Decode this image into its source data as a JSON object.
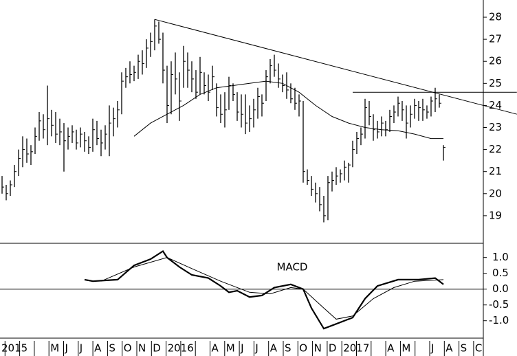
{
  "chart_data": [
    {
      "type": "ohlc",
      "color": "#000000",
      "high": [
        20.8,
        20.4,
        20.6,
        21.3,
        22.0,
        22.6,
        22.5,
        22.2,
        23.0,
        23.7,
        23.6,
        24.9,
        23.8,
        23.7,
        23.4,
        23.2,
        23.0,
        23.1,
        22.9,
        23.0,
        22.8,
        22.6,
        23.4,
        23.3,
        22.9,
        23.1,
        24.0,
        23.9,
        24.2,
        25.5,
        25.7,
        26.0,
        25.8,
        26.3,
        26.5,
        27.0,
        27.3,
        27.9,
        27.8,
        27.3,
        25.8,
        26.0,
        26.4,
        25.5,
        26.7,
        26.4,
        26.0,
        25.6,
        26.2,
        25.5,
        25.4,
        25.8,
        25.0,
        24.5,
        24.6,
        25.3,
        25.0,
        24.6,
        24.5,
        24.5,
        24.0,
        24.3,
        24.8,
        24.5,
        25.6,
        26.1,
        26.3,
        25.9,
        25.4,
        25.5,
        25.0,
        24.8,
        24.5,
        24.2,
        21.1,
        20.8,
        20.5,
        20.3,
        19.9,
        20.8,
        21.0,
        21.2,
        21.1,
        21.5,
        21.4,
        22.4,
        22.8,
        23.0,
        24.3,
        24.2,
        23.6,
        23.3,
        23.5,
        23.3,
        23.8,
        24.0,
        24.4,
        24.2,
        24.0,
        24.0,
        24.3,
        24.2,
        24.3,
        24.0,
        24.4,
        24.8,
        24.5,
        22.2
      ],
      "low": [
        20.0,
        19.7,
        19.9,
        20.3,
        20.8,
        21.2,
        21.4,
        21.3,
        21.8,
        22.4,
        22.5,
        22.2,
        22.6,
        22.3,
        22.2,
        21.0,
        22.0,
        22.3,
        22.0,
        22.1,
        21.9,
        21.8,
        21.9,
        22.2,
        21.7,
        22.0,
        21.7,
        22.6,
        23.0,
        23.6,
        24.8,
        25.0,
        25.1,
        25.2,
        25.4,
        25.7,
        26.2,
        26.5,
        26.8,
        25.0,
        23.2,
        23.6,
        24.5,
        23.3,
        24.8,
        24.8,
        24.6,
        24.3,
        24.5,
        24.5,
        24.2,
        24.7,
        23.5,
        23.2,
        23.0,
        23.8,
        24.2,
        23.3,
        23.0,
        22.7,
        22.8,
        23.0,
        23.4,
        23.5,
        24.2,
        25.0,
        25.3,
        24.8,
        24.6,
        24.3,
        24.1,
        23.8,
        23.5,
        20.5,
        20.4,
        19.9,
        19.6,
        19.2,
        18.7,
        18.8,
        20.1,
        20.4,
        20.5,
        20.6,
        20.5,
        21.2,
        21.8,
        22.2,
        22.5,
        23.1,
        22.4,
        22.5,
        22.6,
        22.6,
        22.8,
        23.2,
        23.5,
        23.3,
        22.5,
        23.0,
        23.4,
        23.3,
        23.3,
        23.4,
        23.5,
        23.7,
        23.9,
        21.5
      ],
      "close": [
        20.3,
        20.0,
        20.4,
        21.0,
        21.6,
        22.0,
        21.8,
        21.9,
        22.6,
        23.3,
        22.9,
        23.4,
        23.1,
        22.7,
        22.8,
        22.4,
        22.6,
        22.8,
        22.3,
        22.7,
        22.4,
        22.1,
        22.9,
        22.5,
        22.3,
        22.7,
        23.2,
        23.4,
        23.8,
        25.1,
        25.3,
        25.4,
        25.5,
        26.0,
        25.9,
        26.6,
        26.9,
        27.6,
        27.0,
        25.6,
        24.0,
        25.4,
        25.2,
        24.2,
        26.0,
        25.6,
        25.2,
        24.6,
        25.5,
        24.9,
        24.6,
        25.3,
        23.9,
        23.6,
        23.8,
        24.9,
        24.5,
        23.7,
        23.6,
        23.2,
        23.4,
        23.8,
        24.4,
        24.1,
        25.3,
        25.8,
        25.6,
        25.2,
        24.9,
        24.7,
        24.3,
        24.1,
        24.2,
        21.0,
        20.6,
        20.2,
        20.0,
        19.5,
        19.0,
        20.5,
        20.6,
        20.8,
        20.9,
        21.2,
        21.3,
        22.0,
        22.5,
        22.7,
        23.9,
        23.5,
        22.9,
        22.8,
        23.2,
        22.9,
        23.5,
        23.7,
        24.1,
        23.8,
        23.2,
        23.6,
        24.0,
        23.9,
        23.8,
        23.7,
        24.2,
        24.3,
        24.1,
        22.1
      ],
      "moving_average": {
        "x": [
          32,
          36,
          40,
          44,
          48,
          52,
          56,
          60,
          64,
          68,
          72,
          76,
          80,
          84,
          88,
          92,
          96,
          100,
          104,
          107
        ],
        "values": [
          22.6,
          23.2,
          23.6,
          24.0,
          24.5,
          24.8,
          24.9,
          25.0,
          25.1,
          25.0,
          24.6,
          24.0,
          23.5,
          23.2,
          23.0,
          22.9,
          22.85,
          22.7,
          22.5,
          22.5
        ]
      },
      "trendlines": [
        {
          "x": [
            37,
            124.8
          ],
          "values": [
            27.9,
            23.6
          ]
        },
        {
          "x": [
            85,
            124.8
          ],
          "values": [
            24.6,
            24.6
          ]
        }
      ],
      "xlim": [
        -0.5,
        116.67
      ],
      "ylim": [
        17.75,
        28.78
      ],
      "yticks": [
        19,
        20,
        21,
        22,
        23,
        24,
        25,
        26,
        27,
        28
      ]
    },
    {
      "type": "line",
      "title": "MACD",
      "color": "#000000",
      "categories": [
        "2015",
        null,
        null,
        null,
        "M",
        "J",
        "J",
        "A",
        "S",
        "O",
        "N",
        "D",
        "2016",
        null,
        null,
        "A",
        "M",
        "J",
        "J",
        "A",
        "S",
        "O",
        "N",
        "D",
        "2017",
        null,
        null,
        "A",
        "M",
        null,
        "J",
        "A",
        "S",
        "C"
      ],
      "series": [
        {
          "x": [
            20,
            22,
            28,
            32,
            36,
            39,
            40,
            43,
            46,
            50,
            53,
            55,
            57,
            60,
            63,
            66,
            70,
            73,
            75,
            78,
            81,
            85,
            88,
            91,
            96,
            101,
            105,
            107
          ],
          "values": [
            0.3,
            0.25,
            0.3,
            0.75,
            0.95,
            1.2,
            1.0,
            0.7,
            0.45,
            0.35,
            0.1,
            -0.1,
            -0.05,
            -0.25,
            -0.2,
            0.05,
            0.15,
            0.0,
            -0.6,
            -1.25,
            -1.1,
            -0.9,
            -0.3,
            0.1,
            0.3,
            0.3,
            0.35,
            0.15
          ]
        },
        {
          "x": [
            24,
            32,
            40,
            46,
            53,
            60,
            65,
            70,
            73,
            78,
            81,
            85,
            90,
            95,
            100,
            107
          ],
          "values": [
            0.25,
            0.7,
            1.0,
            0.65,
            0.25,
            -0.1,
            -0.15,
            0.05,
            0.0,
            -0.6,
            -0.95,
            -0.85,
            -0.3,
            0.05,
            0.25,
            0.3
          ]
        }
      ],
      "zero_line": true,
      "xlim": [
        -0.5,
        116.67
      ],
      "ylim": [
        -1.55,
        1.45
      ],
      "yticks": [
        {
          "value": 1.0,
          "label": "1.0"
        },
        {
          "value": 0.5,
          "label": "0.5"
        },
        {
          "value": 0.0,
          "label": "0.0"
        },
        {
          "value": -0.5,
          "label": "-0.5"
        },
        {
          "value": -1.0,
          "label": "-1.0"
        }
      ]
    }
  ]
}
